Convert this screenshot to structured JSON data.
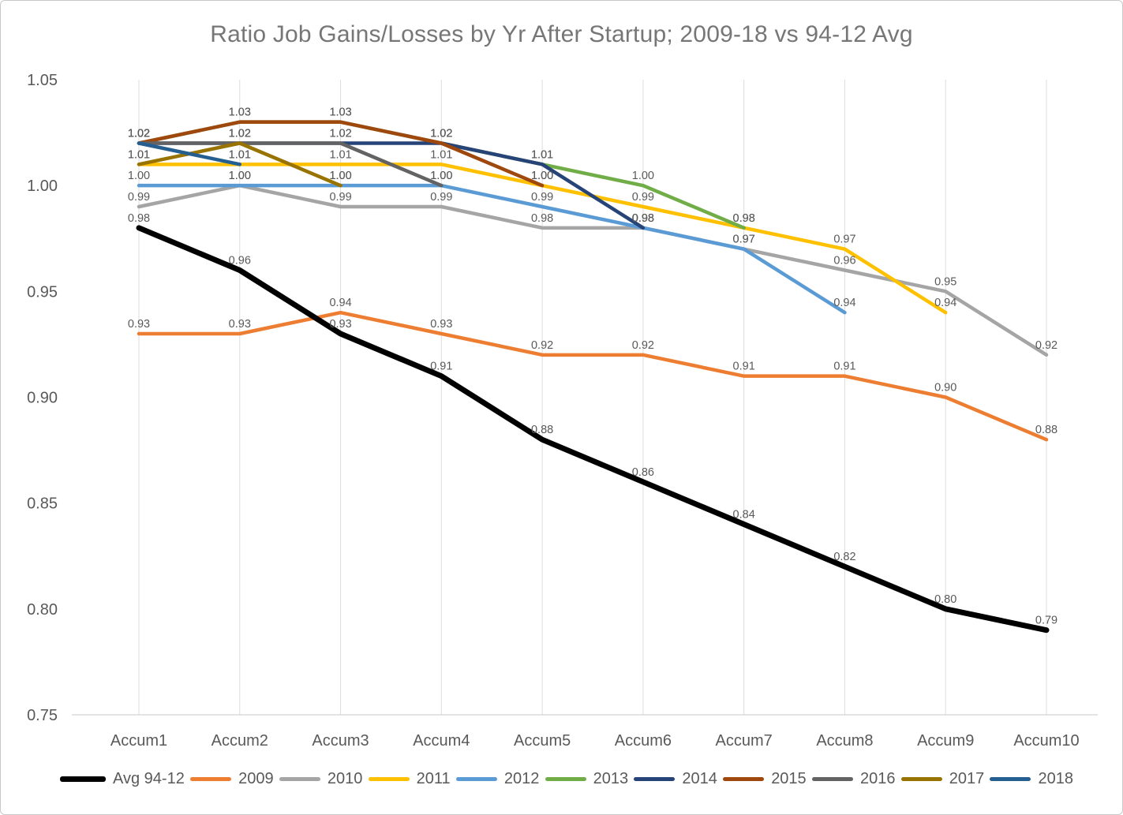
{
  "page": {
    "title": "Ratio Job Gains/Losses by Yr After Startup; 2009-18 vs 94-12 Avg"
  },
  "colors": {
    "title_text": "#767676",
    "axis_text": "#595959",
    "data_label_text": "#595959",
    "gridline": "#dcdcdc",
    "axis_line": "#c9c9c9"
  },
  "chart_data": {
    "type": "line",
    "title": "Ratio Job Gains/Losses by Yr After Startup; 2009-18 vs 94-12 Avg",
    "xlabel": "",
    "ylabel": "",
    "categories": [
      "Accum1",
      "Accum2",
      "Accum3",
      "Accum4",
      "Accum5",
      "Accum6",
      "Accum7",
      "Accum8",
      "Accum9",
      "Accum10"
    ],
    "ylim": [
      0.75,
      1.05
    ],
    "yticks": [
      "1.05",
      "1.00",
      "0.95",
      "0.90",
      "0.85",
      "0.80",
      "0.75"
    ],
    "grid": "vertical-only",
    "legend_position": "bottom",
    "data_labels": true,
    "label_decimals": 2,
    "series": [
      {
        "name": "Avg 94-12",
        "color": "#000000",
        "width": 7,
        "values": [
          0.98,
          0.96,
          0.93,
          0.91,
          0.88,
          0.86,
          0.84,
          0.82,
          0.8,
          0.79
        ]
      },
      {
        "name": "2009",
        "color": "#ED7D31",
        "width": 4.5,
        "values": [
          0.93,
          0.93,
          0.94,
          0.93,
          0.92,
          0.92,
          0.91,
          0.91,
          0.9,
          0.88
        ]
      },
      {
        "name": "2010",
        "color": "#A5A5A5",
        "width": 4.5,
        "values": [
          0.99,
          1.0,
          0.99,
          0.99,
          0.98,
          0.98,
          0.97,
          0.96,
          0.95,
          0.92
        ]
      },
      {
        "name": "2011",
        "color": "#FFC000",
        "width": 4.5,
        "values": [
          1.01,
          1.01,
          1.01,
          1.01,
          1.0,
          0.99,
          0.98,
          0.97,
          0.94,
          null
        ]
      },
      {
        "name": "2012",
        "color": "#5B9BD5",
        "width": 4.5,
        "values": [
          1.0,
          1.0,
          1.0,
          1.0,
          0.99,
          0.98,
          0.97,
          0.94,
          null,
          null
        ]
      },
      {
        "name": "2013",
        "color": "#70AD47",
        "width": 4.5,
        "values": [
          1.02,
          1.03,
          1.03,
          1.02,
          1.01,
          1.0,
          0.98,
          null,
          null,
          null
        ]
      },
      {
        "name": "2014",
        "color": "#264478",
        "width": 4.5,
        "values": [
          1.02,
          1.02,
          1.02,
          1.02,
          1.01,
          0.98,
          null,
          null,
          null,
          null
        ]
      },
      {
        "name": "2015",
        "color": "#9E480E",
        "width": 4.5,
        "values": [
          1.02,
          1.03,
          1.03,
          1.02,
          1.0,
          null,
          null,
          null,
          null,
          null
        ]
      },
      {
        "name": "2016",
        "color": "#636363",
        "width": 4.5,
        "values": [
          1.02,
          1.02,
          1.02,
          1.0,
          null,
          null,
          null,
          null,
          null,
          null
        ]
      },
      {
        "name": "2017",
        "color": "#997300",
        "width": 4.5,
        "values": [
          1.01,
          1.02,
          1.0,
          null,
          null,
          null,
          null,
          null,
          null,
          null
        ]
      },
      {
        "name": "2018",
        "color": "#255E91",
        "width": 4.5,
        "values": [
          1.02,
          1.01,
          null,
          null,
          null,
          null,
          null,
          null,
          null,
          null
        ]
      }
    ]
  }
}
